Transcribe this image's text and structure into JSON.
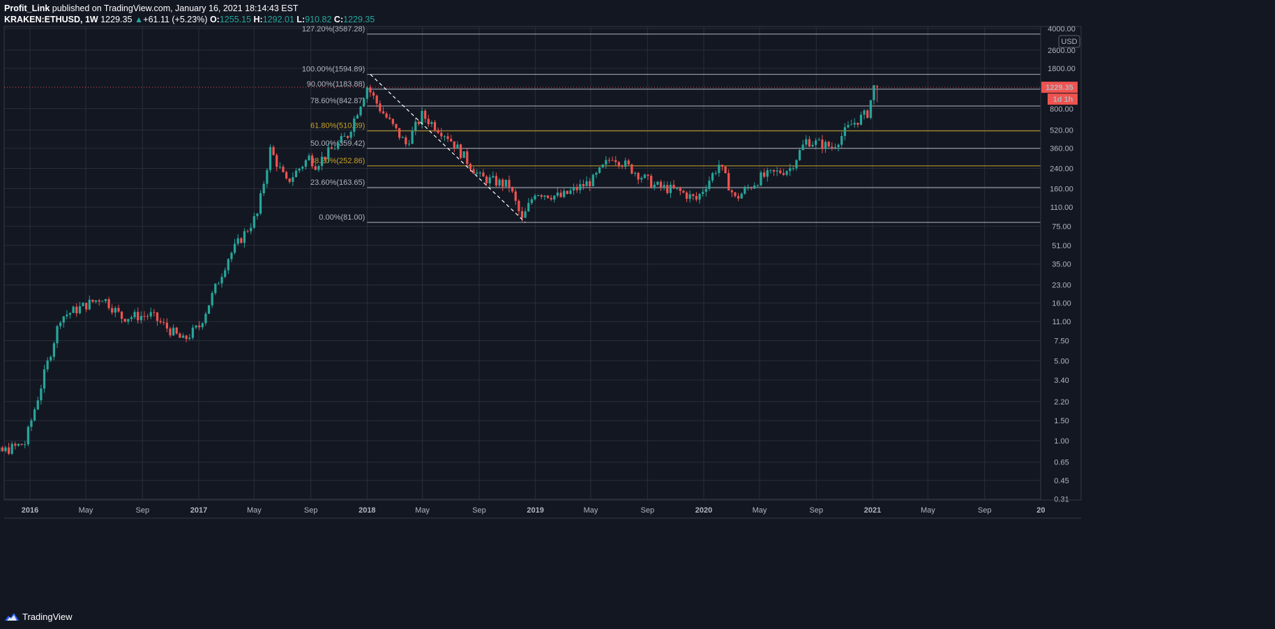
{
  "header": {
    "author": "Profit_Link",
    "published": "published on TradingView.com, January 16, 2021 18:14:43 EST",
    "symbol": "KRAKEN:ETHUSD, 1W",
    "last": "1229.35",
    "change_arrow": "▲",
    "change": "+61.11 (+5.23%)",
    "open_label": "O:",
    "open": "1255.15",
    "high_label": "H:",
    "high": "1292.01",
    "low_label": "L:",
    "low": "910.82",
    "close_label": "C:",
    "close": "1229.35"
  },
  "footer": {
    "brand": "TradingView",
    "logo_icon": "tradingview-logo-icon"
  },
  "colors": {
    "background": "#131722",
    "grid": "#2a2e39",
    "up": "#26a69a",
    "down": "#ef5350",
    "fib_gray": "#b2b5be",
    "fib_gold": "#c9a227"
  },
  "chart_data": {
    "type": "candlestick",
    "scale": "log",
    "currency": "USD",
    "price_axis_ticks": [
      4000,
      2600,
      1800,
      800,
      520,
      360,
      240,
      160,
      110,
      75,
      51,
      35,
      23,
      16,
      11,
      7.5,
      5,
      3.4,
      2.2,
      1.5,
      1,
      0.65,
      0.45,
      0.31
    ],
    "price_axis_labels": [
      "4000.00",
      "2600.00",
      "1800.00",
      "800.00",
      "520.00",
      "360.00",
      "240.00",
      "160.00",
      "110.00",
      "75.00",
      "51.00",
      "35.00",
      "23.00",
      "16.00",
      "11.00",
      "7.50",
      "5.00",
      "3.40",
      "2.20",
      "1.50",
      "1.00",
      "0.65",
      "0.45",
      "0.31"
    ],
    "time_axis_labels": [
      {
        "label": "2016",
        "date": "2016-01",
        "major": true
      },
      {
        "label": "May",
        "date": "2016-05",
        "major": false
      },
      {
        "label": "Sep",
        "date": "2016-09",
        "major": false
      },
      {
        "label": "2017",
        "date": "2017-01",
        "major": true
      },
      {
        "label": "May",
        "date": "2017-05",
        "major": false
      },
      {
        "label": "Sep",
        "date": "2017-09",
        "major": false
      },
      {
        "label": "2018",
        "date": "2018-01",
        "major": true
      },
      {
        "label": "May",
        "date": "2018-05",
        "major": false
      },
      {
        "label": "Sep",
        "date": "2018-09",
        "major": false
      },
      {
        "label": "2019",
        "date": "2019-01",
        "major": true
      },
      {
        "label": "May",
        "date": "2019-05",
        "major": false
      },
      {
        "label": "Sep",
        "date": "2019-09",
        "major": false
      },
      {
        "label": "2020",
        "date": "2020-01",
        "major": true
      },
      {
        "label": "May",
        "date": "2020-05",
        "major": false
      },
      {
        "label": "Sep",
        "date": "2020-09",
        "major": false
      },
      {
        "label": "2021",
        "date": "2021-01",
        "major": true
      },
      {
        "label": "May",
        "date": "2021-05",
        "major": false
      },
      {
        "label": "Sep",
        "date": "2021-09",
        "major": false
      },
      {
        "label": "20",
        "date": "2022-01",
        "major": true
      }
    ],
    "fib_start": "2018-01",
    "fib_levels": [
      {
        "label": "127.20%(3587.28)",
        "price": 3587.28,
        "gold": false
      },
      {
        "label": "100.00%(1594.89)",
        "price": 1594.89,
        "gold": false
      },
      {
        "label": "90.00%(1183.88)",
        "price": 1183.88,
        "gold": false
      },
      {
        "label": "78.60%(842.87)",
        "price": 842.87,
        "gold": false
      },
      {
        "label": "61.80%(510.89)",
        "price": 510.89,
        "gold": true
      },
      {
        "label": "50.00%(359.42)",
        "price": 359.42,
        "gold": false
      },
      {
        "label": "38.20%(252.86)",
        "price": 252.86,
        "gold": true
      },
      {
        "label": "23.60%(163.65)",
        "price": 163.65,
        "gold": false
      },
      {
        "label": "0.00%(81.00)",
        "price": 81.0,
        "gold": false
      }
    ],
    "trend_line": {
      "from": {
        "date": "2018-01-08",
        "price": 1594.89
      },
      "to": {
        "date": "2018-12-10",
        "price": 81.0
      }
    },
    "current_price": {
      "value": "1229.35",
      "price": 1229.35,
      "countdown": "1d 1h"
    },
    "anchors": [
      {
        "date": "2015-08-10",
        "price": 1.0
      },
      {
        "date": "2015-10-20",
        "price": 0.75
      },
      {
        "date": "2015-12-28",
        "price": 0.95
      },
      {
        "date": "2016-03-14",
        "price": 12.0
      },
      {
        "date": "2016-06-13",
        "price": 18.0
      },
      {
        "date": "2016-07-25",
        "price": 12.0
      },
      {
        "date": "2016-09-26",
        "price": 12.5
      },
      {
        "date": "2016-12-05",
        "price": 7.5
      },
      {
        "date": "2017-01-09",
        "price": 10.0
      },
      {
        "date": "2017-03-13",
        "price": 40.0
      },
      {
        "date": "2017-05-15",
        "price": 95.0
      },
      {
        "date": "2017-06-12",
        "price": 350.0
      },
      {
        "date": "2017-07-17",
        "price": 180.0
      },
      {
        "date": "2017-09-04",
        "price": 300.0
      },
      {
        "date": "2017-09-18",
        "price": 260.0
      },
      {
        "date": "2017-11-27",
        "price": 470.0
      },
      {
        "date": "2018-01-08",
        "price": 1250.0
      },
      {
        "date": "2018-02-05",
        "price": 800.0
      },
      {
        "date": "2018-04-02",
        "price": 390.0
      },
      {
        "date": "2018-05-07",
        "price": 700.0
      },
      {
        "date": "2018-07-02",
        "price": 460.0
      },
      {
        "date": "2018-09-10",
        "price": 200.0
      },
      {
        "date": "2018-11-12",
        "price": 170.0
      },
      {
        "date": "2018-12-10",
        "price": 84.0
      },
      {
        "date": "2019-01-07",
        "price": 150.0
      },
      {
        "date": "2019-03-04",
        "price": 135.0
      },
      {
        "date": "2019-05-13",
        "price": 190.0
      },
      {
        "date": "2019-06-24",
        "price": 310.0
      },
      {
        "date": "2019-09-23",
        "price": 170.0
      },
      {
        "date": "2019-11-18",
        "price": 150.0
      },
      {
        "date": "2019-12-23",
        "price": 128.0
      },
      {
        "date": "2020-02-10",
        "price": 260.0
      },
      {
        "date": "2020-03-16",
        "price": 130.0
      },
      {
        "date": "2020-05-11",
        "price": 200.0
      },
      {
        "date": "2020-07-13",
        "price": 240.0
      },
      {
        "date": "2020-08-17",
        "price": 420.0
      },
      {
        "date": "2020-10-12",
        "price": 370.0
      },
      {
        "date": "2020-11-23",
        "price": 580.0
      },
      {
        "date": "2020-12-28",
        "price": 730.0
      },
      {
        "date": "2021-01-11",
        "price": 1229.35
      }
    ],
    "last_candle": {
      "date": "2021-01-11",
      "open": 1255.15,
      "high": 1292.01,
      "low": 910.82,
      "close": 1229.35
    }
  }
}
